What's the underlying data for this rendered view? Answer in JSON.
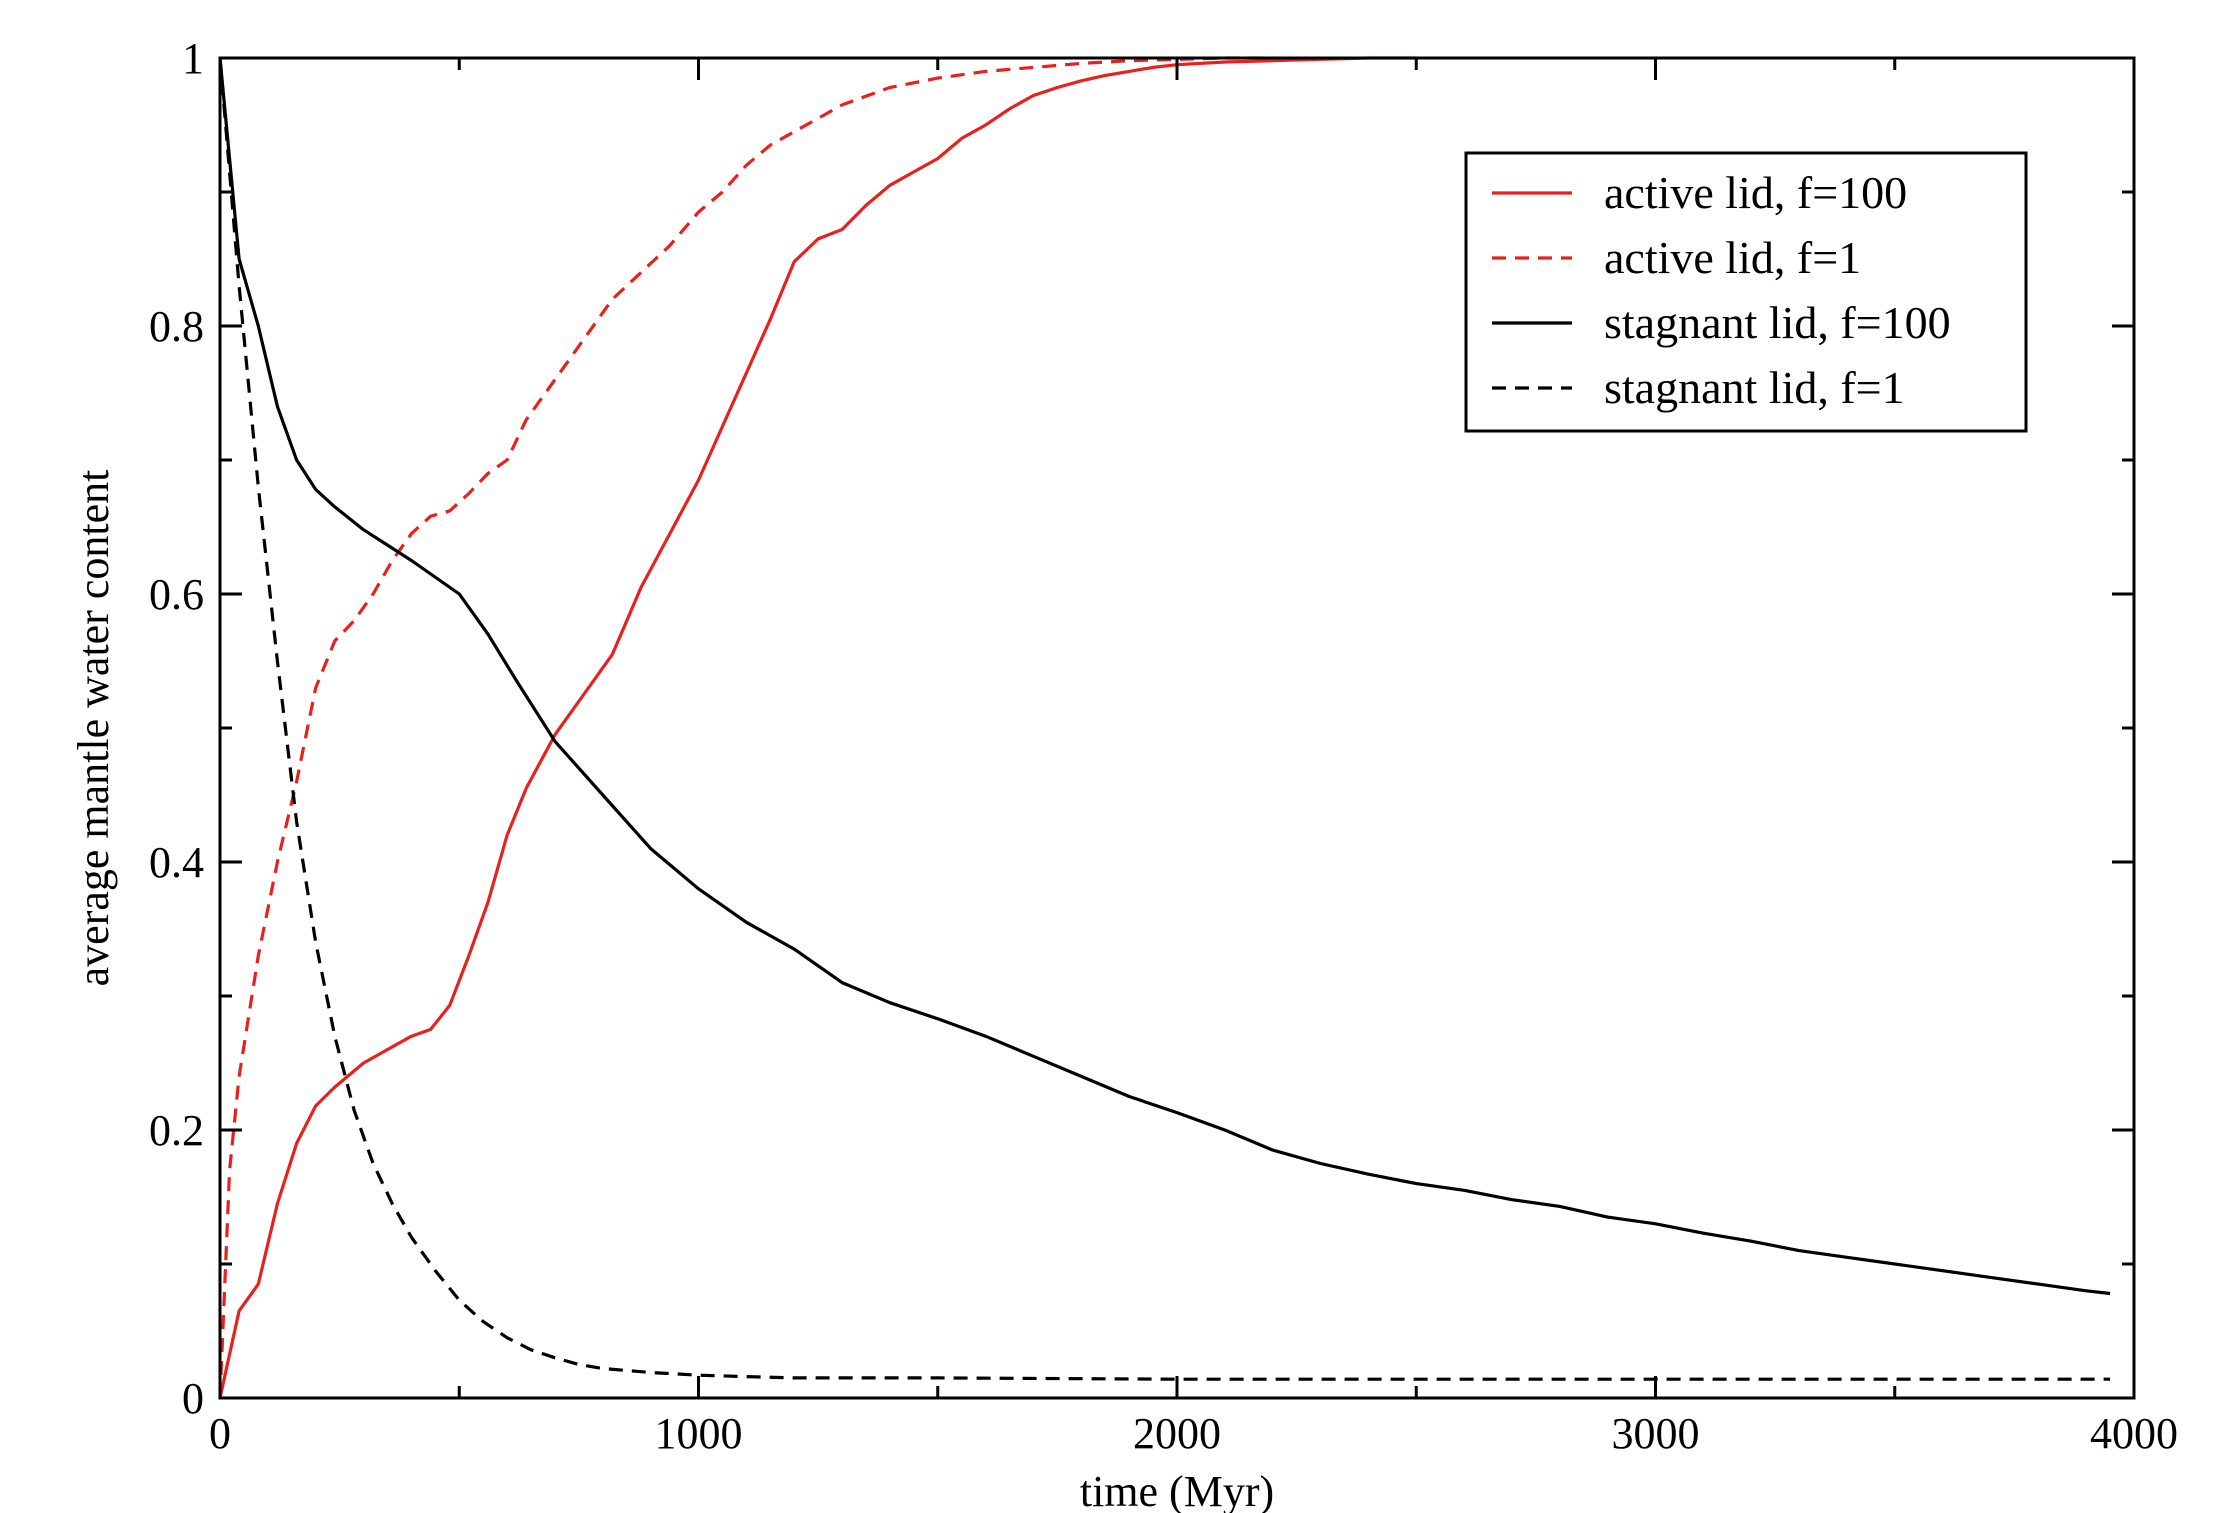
{
  "chart_data": {
    "type": "line",
    "title": "",
    "xlabel": "time (Myr)",
    "ylabel": "average mantle water content",
    "xlim": [
      0,
      4000
    ],
    "ylim": [
      0,
      1
    ],
    "x_ticks": [
      0,
      1000,
      2000,
      3000,
      4000
    ],
    "x_tick_labels": [
      "0",
      "1000",
      "2000",
      "3000",
      "4000"
    ],
    "y_ticks": [
      0,
      0.2,
      0.4,
      0.6,
      0.8,
      1
    ],
    "y_tick_labels": [
      "0",
      "0.2",
      "0.4",
      "0.6",
      "0.8",
      "1"
    ],
    "grid": false,
    "legend_position": "top-right",
    "series": [
      {
        "name": "active lid, f=100",
        "color": "#e8201e",
        "dash": "solid",
        "x": [
          0,
          40,
          80,
          120,
          160,
          200,
          240,
          300,
          360,
          400,
          440,
          480,
          520,
          560,
          600,
          640,
          700,
          760,
          820,
          880,
          940,
          1000,
          1050,
          1100,
          1150,
          1200,
          1250,
          1300,
          1350,
          1400,
          1450,
          1500,
          1550,
          1600,
          1650,
          1700,
          1750,
          1800,
          1850,
          1900,
          1950,
          2000,
          2100,
          2200,
          2300,
          2400,
          2500
        ],
        "y": [
          0,
          0.065,
          0.085,
          0.145,
          0.19,
          0.218,
          0.232,
          0.25,
          0.262,
          0.27,
          0.275,
          0.293,
          0.33,
          0.37,
          0.42,
          0.455,
          0.495,
          0.525,
          0.555,
          0.605,
          0.645,
          0.685,
          0.725,
          0.765,
          0.805,
          0.848,
          0.865,
          0.872,
          0.89,
          0.905,
          0.915,
          0.925,
          0.94,
          0.95,
          0.962,
          0.972,
          0.978,
          0.983,
          0.987,
          0.99,
          0.993,
          0.995,
          0.997,
          0.998,
          0.999,
          1.0,
          1.0
        ]
      },
      {
        "name": "active lid, f=1",
        "color": "#e8201e",
        "dash": "dashed",
        "x": [
          0,
          20,
          40,
          80,
          120,
          160,
          200,
          240,
          280,
          320,
          360,
          400,
          440,
          480,
          520,
          560,
          600,
          640,
          700,
          760,
          820,
          880,
          940,
          1000,
          1050,
          1100,
          1150,
          1200,
          1300,
          1400,
          1500,
          1600,
          1700,
          1800,
          1900,
          2000,
          2100,
          2200
        ],
        "y": [
          0,
          0.17,
          0.24,
          0.33,
          0.4,
          0.46,
          0.53,
          0.565,
          0.58,
          0.6,
          0.625,
          0.645,
          0.658,
          0.662,
          0.675,
          0.69,
          0.7,
          0.73,
          0.76,
          0.79,
          0.82,
          0.84,
          0.86,
          0.885,
          0.9,
          0.92,
          0.935,
          0.945,
          0.965,
          0.978,
          0.985,
          0.99,
          0.993,
          0.996,
          0.998,
          0.999,
          1.0,
          1.0
        ]
      },
      {
        "name": "stagnant lid, f=100",
        "color": "#000000",
        "dash": "solid",
        "x": [
          0,
          40,
          80,
          120,
          160,
          200,
          240,
          300,
          400,
          500,
          560,
          620,
          700,
          800,
          900,
          1000,
          1100,
          1200,
          1300,
          1400,
          1500,
          1600,
          1700,
          1800,
          1900,
          2000,
          2100,
          2200,
          2300,
          2400,
          2500,
          2600,
          2700,
          2800,
          2900,
          3000,
          3100,
          3200,
          3300,
          3400,
          3500,
          3600,
          3700,
          3800,
          3900,
          3950
        ],
        "y": [
          1.0,
          0.85,
          0.8,
          0.74,
          0.7,
          0.678,
          0.665,
          0.648,
          0.625,
          0.6,
          0.57,
          0.535,
          0.49,
          0.45,
          0.41,
          0.38,
          0.355,
          0.335,
          0.31,
          0.295,
          0.283,
          0.27,
          0.255,
          0.24,
          0.225,
          0.213,
          0.2,
          0.185,
          0.175,
          0.167,
          0.16,
          0.155,
          0.148,
          0.143,
          0.135,
          0.13,
          0.123,
          0.117,
          0.11,
          0.105,
          0.1,
          0.095,
          0.09,
          0.085,
          0.08,
          0.078
        ]
      },
      {
        "name": "stagnant lid, f=1",
        "color": "#000000",
        "dash": "dashed",
        "x": [
          0,
          40,
          80,
          120,
          160,
          200,
          240,
          280,
          320,
          360,
          400,
          450,
          500,
          550,
          600,
          650,
          700,
          750,
          800,
          900,
          1000,
          1100,
          1200,
          1300,
          1500,
          2000,
          2500,
          3000,
          3500,
          3950
        ],
        "y": [
          1.0,
          0.83,
          0.68,
          0.55,
          0.43,
          0.34,
          0.27,
          0.215,
          0.175,
          0.145,
          0.12,
          0.095,
          0.073,
          0.057,
          0.045,
          0.036,
          0.03,
          0.025,
          0.022,
          0.019,
          0.017,
          0.016,
          0.015,
          0.015,
          0.015,
          0.014,
          0.014,
          0.014,
          0.014,
          0.014
        ]
      }
    ]
  }
}
